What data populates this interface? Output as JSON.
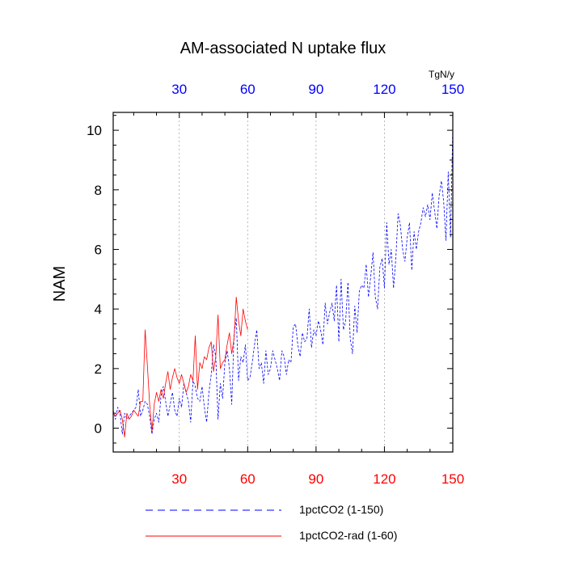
{
  "chart_data": {
    "type": "line",
    "title": "AM-associated N uptake flux",
    "ylabel": "NAM",
    "xlabel": "",
    "units_label": "TgN/y",
    "xlim": [
      1,
      150
    ],
    "ylim": [
      -0.8,
      10.6
    ],
    "x_major_ticks": [
      30,
      60,
      90,
      120,
      150
    ],
    "x_tick_labels": [
      "30",
      "60",
      "90",
      "120",
      "150"
    ],
    "y_major_ticks": [
      0,
      2,
      4,
      6,
      8,
      10
    ],
    "y_tick_labels": [
      "0",
      "2",
      "4",
      "6",
      "8",
      "10"
    ],
    "bottom_tick_color": "#ff0000",
    "top_tick_color": "#0000ff",
    "vertical_grid": true,
    "grid_at": [
      30,
      60,
      90,
      120
    ],
    "legend_position": "bottom",
    "series": [
      {
        "name": "1pctCO2 (1-150)",
        "color": "#0000ff",
        "style": "dashed",
        "x_start": 1,
        "values": [
          0.6,
          0.3,
          0.7,
          0.5,
          -0.2,
          0.5,
          0.3,
          0.4,
          0.5,
          0.6,
          0.7,
          1.3,
          0.4,
          0.6,
          0.9,
          0.8,
          0.4,
          -0.2,
          0.3,
          0.5,
          0.2,
          1.1,
          1.4,
          0.9,
          0.4,
          0.8,
          1.2,
          0.6,
          0.4,
          1.0,
          0.7,
          1.5,
          1.2,
          0.9,
          0.2,
          1.6,
          1.4,
          1.0,
          0.9,
          1.4,
          0.7,
          0.2,
          1.2,
          1.8,
          2.8,
          2.4,
          0.3,
          1.5,
          1.0,
          2.2,
          2.6,
          2.0,
          0.8,
          3.1,
          3.7,
          1.6,
          2.4,
          2.2,
          2.8,
          1.6,
          1.7,
          2.2,
          2.8,
          3.3,
          2.0,
          2.2,
          1.5,
          2.6,
          1.8,
          2.0,
          2.6,
          2.3,
          2.0,
          1.6,
          2.6,
          2.4,
          1.8,
          2.3,
          2.2,
          3.4,
          3.5,
          2.8,
          2.4,
          3.2,
          2.9,
          3.0,
          4.0,
          2.7,
          3.3,
          3.1,
          3.6,
          3.3,
          2.8,
          4.2,
          3.5,
          3.9,
          4.2,
          3.6,
          4.8,
          2.9,
          5.0,
          3.3,
          3.6,
          4.9,
          3.0,
          2.5,
          4.1,
          3.2,
          4.6,
          4.8,
          4.7,
          5.5,
          4.4,
          5.1,
          5.9,
          4.4,
          4.0,
          5.4,
          5.7,
          4.7,
          6.9,
          5.5,
          6.0,
          4.7,
          5.7,
          7.2,
          6.8,
          6.0,
          5.6,
          6.4,
          6.9,
          5.3,
          6.6,
          6.0,
          6.6,
          6.9,
          7.4,
          7.1,
          7.5,
          7.0,
          7.9,
          7.3,
          6.7,
          7.8,
          8.3,
          7.6,
          6.3,
          8.6,
          6.4,
          10.1
        ]
      },
      {
        "name": "1pctCO2-rad (1-60)",
        "color": "#ff0000",
        "style": "solid",
        "x_start": 1,
        "values": [
          0.5,
          0.4,
          0.5,
          0.6,
          0.3,
          -0.3,
          0.5,
          0.3,
          0.4,
          0.6,
          0.5,
          0.4,
          0.9,
          0.9,
          3.3,
          2.1,
          0.8,
          -0.1,
          0.8,
          1.2,
          0.9,
          1.3,
          1.0,
          1.5,
          1.9,
          1.3,
          1.7,
          2.0,
          1.7,
          1.5,
          1.8,
          1.5,
          1.2,
          1.4,
          1.8,
          1.6,
          3.1,
          1.3,
          2.2,
          2.0,
          2.4,
          2.3,
          2.7,
          2.9,
          1.9,
          2.4,
          3.8,
          2.0,
          2.2,
          2.3,
          2.8,
          3.2,
          2.5,
          3.0,
          4.4,
          3.6,
          3.1,
          4.0,
          3.6,
          3.3
        ]
      }
    ]
  }
}
